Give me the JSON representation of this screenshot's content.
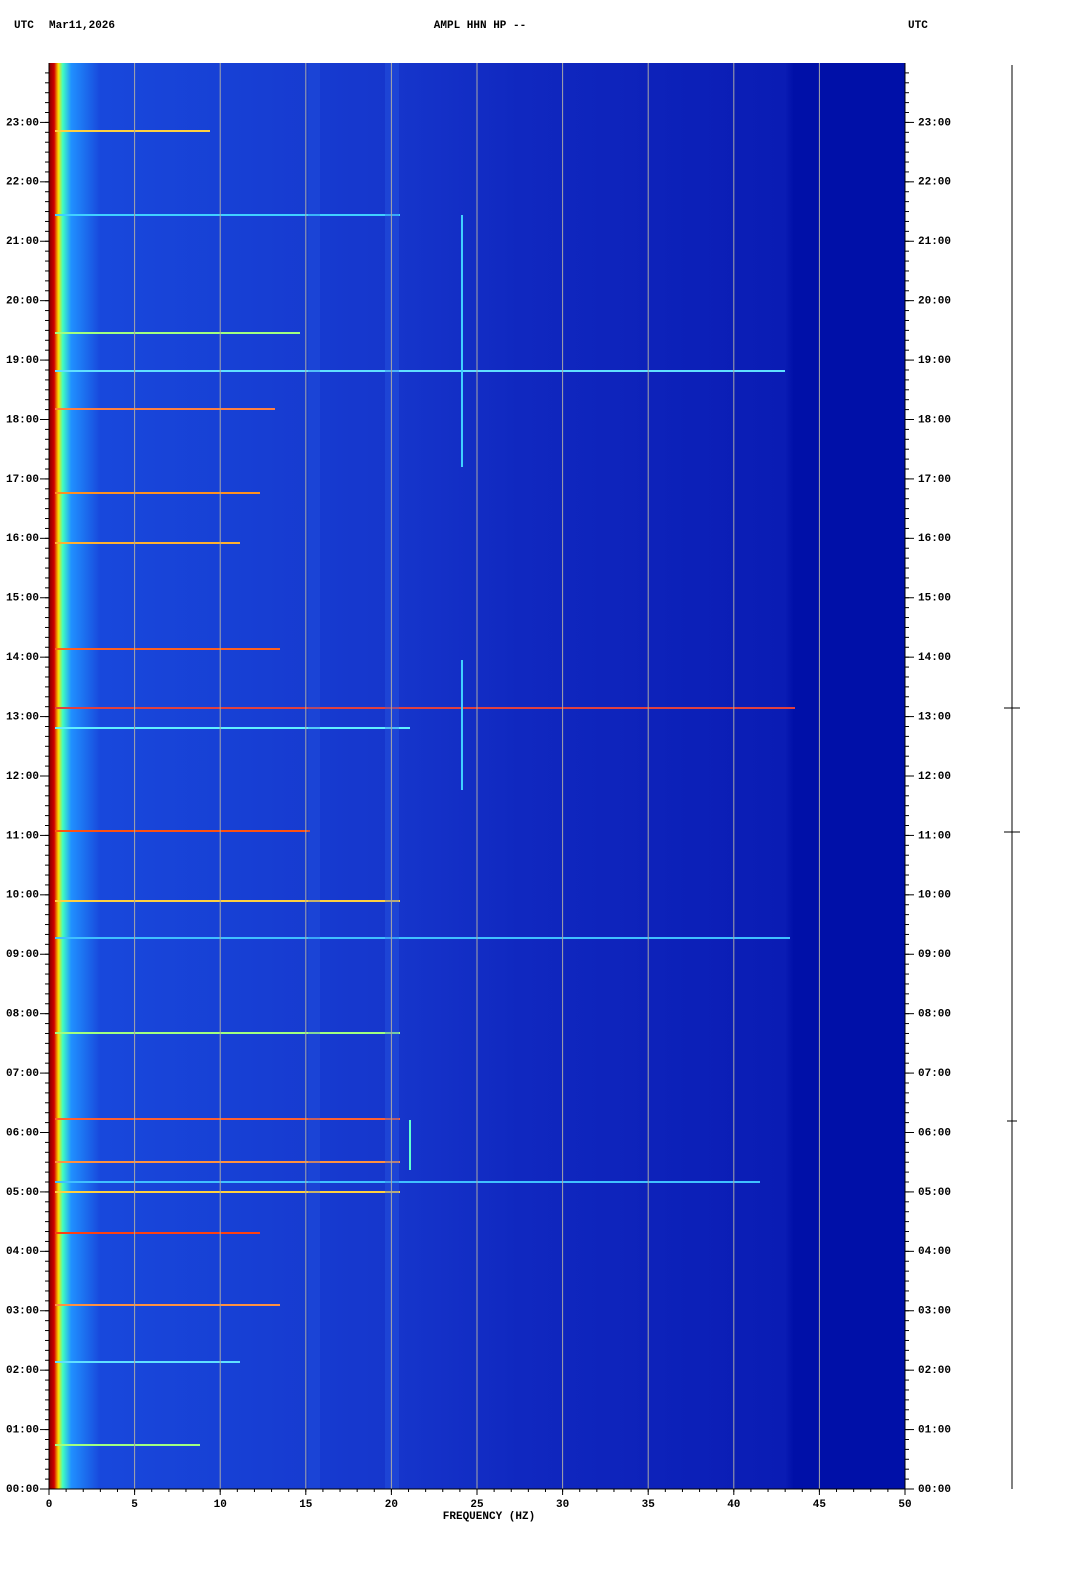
{
  "header": {
    "left_zone": "UTC",
    "date": "Mar11,2026",
    "title": "AMPL HHN HP --",
    "right_zone": "UTC"
  },
  "chart_data": {
    "type": "spectrogram",
    "xlabel": "FREQUENCY (HZ)",
    "xlim": [
      0,
      50
    ],
    "xticks": [
      0,
      5,
      10,
      15,
      20,
      25,
      30,
      35,
      40,
      45,
      50
    ],
    "grid": true,
    "grid_color": "#a8a8a8",
    "ylim": [
      0,
      24
    ],
    "yticks": [
      {
        "value": 0,
        "label": "00:00"
      },
      {
        "value": 1,
        "label": "01:00"
      },
      {
        "value": 2,
        "label": "02:00"
      },
      {
        "value": 3,
        "label": "03:00"
      },
      {
        "value": 4,
        "label": "04:00"
      },
      {
        "value": 5,
        "label": "05:00"
      },
      {
        "value": 6,
        "label": "06:00"
      },
      {
        "value": 7,
        "label": "07:00"
      },
      {
        "value": 8,
        "label": "08:00"
      },
      {
        "value": 9,
        "label": "09:00"
      },
      {
        "value": 10,
        "label": "10:00"
      },
      {
        "value": 11,
        "label": "11:00"
      },
      {
        "value": 12,
        "label": "12:00"
      },
      {
        "value": 13,
        "label": "13:00"
      },
      {
        "value": 14,
        "label": "14:00"
      },
      {
        "value": 15,
        "label": "15:00"
      },
      {
        "value": 16,
        "label": "16:00"
      },
      {
        "value": 17,
        "label": "17:00"
      },
      {
        "value": 18,
        "label": "18:00"
      },
      {
        "value": 19,
        "label": "19:00"
      },
      {
        "value": 20,
        "label": "20:00"
      },
      {
        "value": 21,
        "label": "21:00"
      },
      {
        "value": 22,
        "label": "22:00"
      },
      {
        "value": 23,
        "label": "23:00"
      }
    ]
  }
}
